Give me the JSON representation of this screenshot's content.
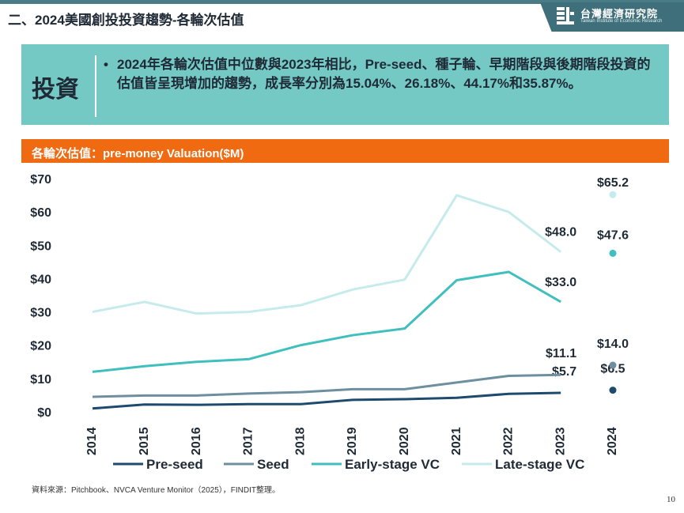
{
  "header": {
    "title": "二、2024美國創投投資趨勢-各輪次估值",
    "logo_cn": "台灣經濟研究院",
    "logo_en": "Taiwan Institute of Economic Research"
  },
  "callout": {
    "label": "投資",
    "bullet": "•",
    "text": "2024年各輪次估值中位數與2023年相比，Pre-seed、種子輪、早期階段與後期階段投資的估值皆呈現增加的趨勢，成長率分別為15.04%、26.18%、44.17%和35.87%。"
  },
  "chart_header": "各輪次估值：pre-money Valuation($M)",
  "chart_data": {
    "type": "line",
    "title": "各輪次估值：pre-money Valuation($M)",
    "x": [
      "2014",
      "2015",
      "2016",
      "2017",
      "2018",
      "2019",
      "2020",
      "2021",
      "2022",
      "2023",
      "2024"
    ],
    "y_ticks": [
      "$0",
      "$10",
      "$20",
      "$30",
      "$40",
      "$50",
      "$60",
      "$70"
    ],
    "ylim": [
      0,
      70
    ],
    "grid": false,
    "legend_position": "bottom",
    "series": [
      {
        "name": "Pre-seed",
        "color": "#1e4a6e",
        "values": [
          1.0,
          2.2,
          2.1,
          2.3,
          2.3,
          3.6,
          3.8,
          4.2,
          5.4,
          5.7,
          6.5
        ],
        "labels": [
          {
            "x": "2023",
            "text": "$5.7"
          },
          {
            "x": "2024",
            "text": "$6.5"
          }
        ]
      },
      {
        "name": "Seed",
        "color": "#6e8fa0",
        "values": [
          4.5,
          4.9,
          4.9,
          5.5,
          5.9,
          6.8,
          6.8,
          8.8,
          10.8,
          11.1,
          14.0
        ],
        "labels": [
          {
            "x": "2023",
            "text": "$11.1"
          },
          {
            "x": "2024",
            "text": "$14.0"
          }
        ]
      },
      {
        "name": "Early-stage VC",
        "color": "#3fbfbd",
        "values": [
          12.0,
          13.7,
          15.0,
          15.8,
          20.0,
          23.0,
          25.0,
          39.5,
          42.0,
          33.0,
          47.6
        ],
        "labels": [
          {
            "x": "2023",
            "text": "$33.0"
          },
          {
            "x": "2024",
            "text": "$47.6"
          }
        ]
      },
      {
        "name": "Late-stage VC",
        "color": "#c6ebec",
        "values": [
          30.0,
          33.0,
          29.5,
          30.0,
          32.0,
          36.7,
          39.7,
          65.0,
          60.0,
          48.0,
          65.2
        ],
        "labels": [
          {
            "x": "2023",
            "text": "$48.0"
          },
          {
            "x": "2024",
            "text": "$65.2"
          }
        ]
      }
    ],
    "separate_points_x": "2024"
  },
  "source": "資料來源：Pitchbook、NVCA Venture Monitor（2025），FINDIT整理。",
  "page_number": "10"
}
